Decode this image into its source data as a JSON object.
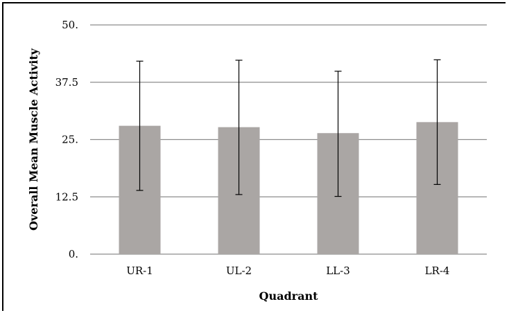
{
  "chart_data": {
    "type": "bar",
    "title": "",
    "xlabel": "Quadrant",
    "ylabel": "Overall Mean Muscle Activity",
    "categories": [
      "UR-1",
      "UL-2",
      "LL-3",
      "LR-4"
    ],
    "values": [
      28.0,
      27.7,
      26.4,
      28.8
    ],
    "error_low": [
      13.9,
      13.0,
      12.6,
      15.2
    ],
    "error_high": [
      42.1,
      42.3,
      39.9,
      42.4
    ],
    "ylim": [
      0,
      50
    ],
    "yticks": [
      0,
      12.5,
      25,
      37.5,
      50
    ],
    "ytick_labels": [
      "0.",
      "12.5",
      "25.",
      "37.5",
      "50."
    ],
    "grid": true,
    "legend": "none",
    "bar_color": "#aaa6a4",
    "grid_color": "#8c8c8c",
    "error_color": "#000000"
  }
}
